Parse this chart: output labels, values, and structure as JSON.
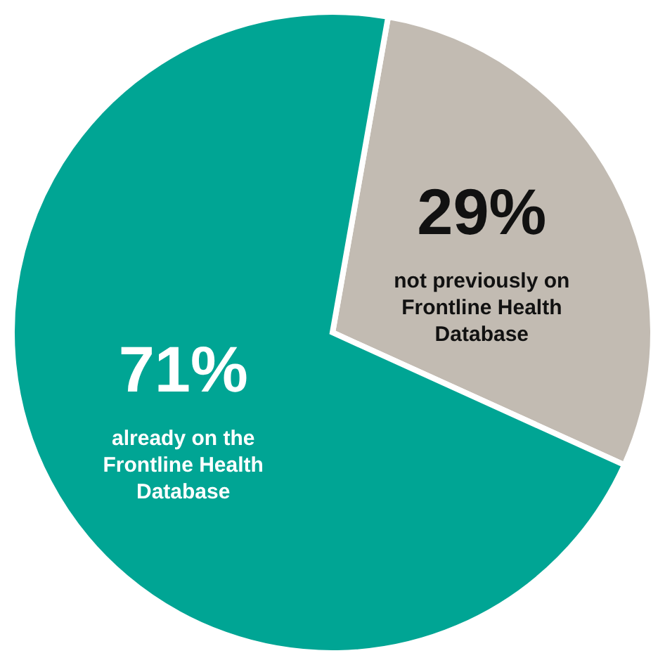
{
  "chart_data": {
    "type": "pie",
    "categories": [
      "not previously on Frontline Health Database",
      "already on the Frontline Health Database"
    ],
    "values": [
      29,
      71
    ],
    "colors": [
      "#c2bbb2",
      "#00a594"
    ],
    "value_labels": [
      "29%",
      "71%"
    ]
  }
}
